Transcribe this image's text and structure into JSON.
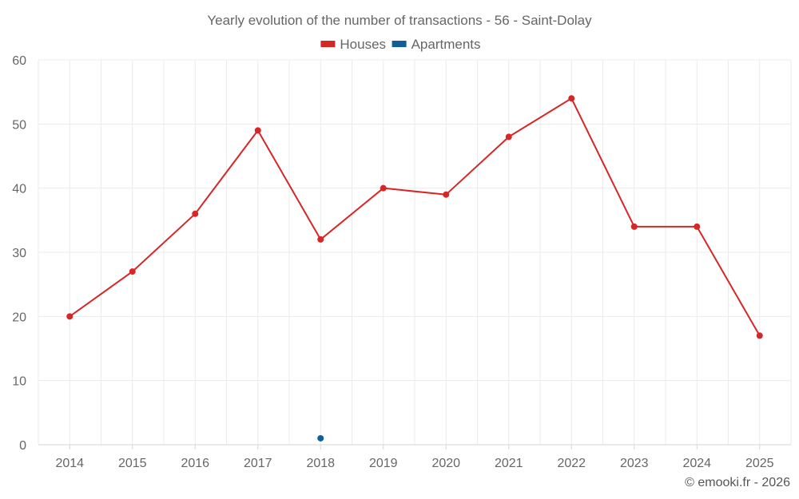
{
  "chart_data": {
    "type": "line",
    "title": "Yearly evolution of the number of transactions - 56 - Saint-Dolay",
    "categories": [
      "2014",
      "2015",
      "2016",
      "2017",
      "2018",
      "2019",
      "2020",
      "2021",
      "2022",
      "2023",
      "2024",
      "2025"
    ],
    "series": [
      {
        "name": "Houses",
        "color": "#d62728",
        "values": [
          20,
          27,
          36,
          49,
          32,
          40,
          39,
          48,
          54,
          34,
          34,
          17
        ]
      },
      {
        "name": "Apartments",
        "color": "#0f5f9b",
        "values": [
          null,
          null,
          null,
          null,
          1,
          null,
          null,
          null,
          null,
          null,
          null,
          null
        ]
      }
    ],
    "ylim": [
      0,
      60
    ],
    "yticks": [
      0,
      10,
      20,
      30,
      40,
      50,
      60
    ],
    "xlabel": "",
    "ylabel": "",
    "grid": true,
    "legend_position": "top-center"
  },
  "credit": "© emooki.fr - 2026"
}
